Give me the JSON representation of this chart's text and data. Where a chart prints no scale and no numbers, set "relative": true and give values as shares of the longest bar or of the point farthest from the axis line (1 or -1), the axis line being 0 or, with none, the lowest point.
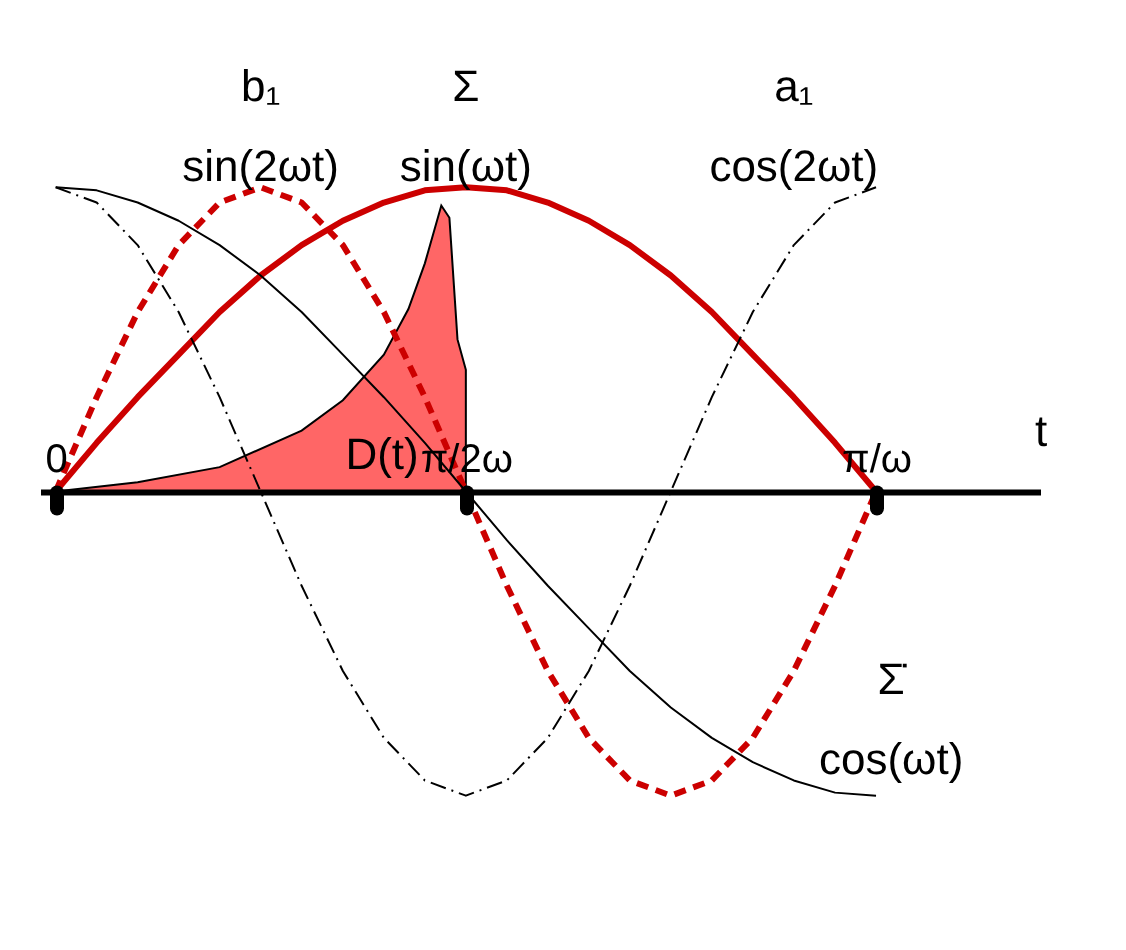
{
  "chart_data": {
    "type": "line",
    "relative": true,
    "xlabel": "t",
    "grid": false,
    "x": [
      0,
      0.157,
      0.314,
      0.471,
      0.628,
      0.785,
      0.942,
      1.1,
      1.257,
      1.414,
      1.571,
      1.728,
      1.885,
      2.042,
      2.199,
      2.356,
      2.513,
      2.67,
      2.827,
      2.985,
      3.142
    ],
    "xlim": [
      -0.06,
      3.77
    ],
    "xticks": [
      0,
      {
        "value": 1.571,
        "label": "π/2ω"
      },
      {
        "value": 3.142,
        "label": "π/ω"
      }
    ],
    "series": [
      {
        "name": "b₁ sin(2ωt)",
        "color": "#cc0000",
        "line_style": "dashed",
        "values": [
          0,
          0.31,
          0.59,
          0.81,
          0.95,
          1,
          0.95,
          0.81,
          0.59,
          0.31,
          0,
          -0.31,
          -0.59,
          -0.81,
          -0.95,
          -1,
          -0.95,
          -0.81,
          -0.59,
          -0.31,
          0
        ]
      },
      {
        "name": "Σ sin(ωt)",
        "color": "#cc0000",
        "line_style": "solid",
        "values": [
          0,
          0.16,
          0.31,
          0.45,
          0.59,
          0.71,
          0.81,
          0.89,
          0.95,
          0.99,
          1,
          0.99,
          0.95,
          0.89,
          0.81,
          0.71,
          0.59,
          0.45,
          0.31,
          0.16,
          0
        ]
      },
      {
        "name": "a₁ cos(2ωt)",
        "color": "#000000",
        "line_style": "dashdot",
        "values": [
          1,
          0.95,
          0.81,
          0.59,
          0.31,
          0,
          -0.31,
          -0.59,
          -0.81,
          -0.95,
          -1,
          -0.95,
          -0.81,
          -0.59,
          -0.31,
          0,
          0.31,
          0.59,
          0.81,
          0.95,
          1
        ]
      },
      {
        "name": "Σ̇ cos(ωt)",
        "color": "#000000",
        "line_style": "solid",
        "values": [
          1,
          0.99,
          0.95,
          0.89,
          0.81,
          0.71,
          0.59,
          0.45,
          0.31,
          0.16,
          0,
          -0.16,
          -0.31,
          -0.45,
          -0.59,
          -0.71,
          -0.81,
          -0.89,
          -0.95,
          -0.99,
          -1
        ]
      },
      {
        "name": "D(t)",
        "type": "area",
        "color": "#ff6666",
        "x": [
          0,
          0.314,
          0.628,
          0.942,
          1.1,
          1.257,
          1.351,
          1.414,
          1.477,
          1.508,
          1.539,
          1.571
        ],
        "values": [
          0,
          0.03,
          0.08,
          0.2,
          0.3,
          0.45,
          0.6,
          0.75,
          0.94,
          0.9,
          0.5,
          0.4
        ]
      }
    ]
  }
}
